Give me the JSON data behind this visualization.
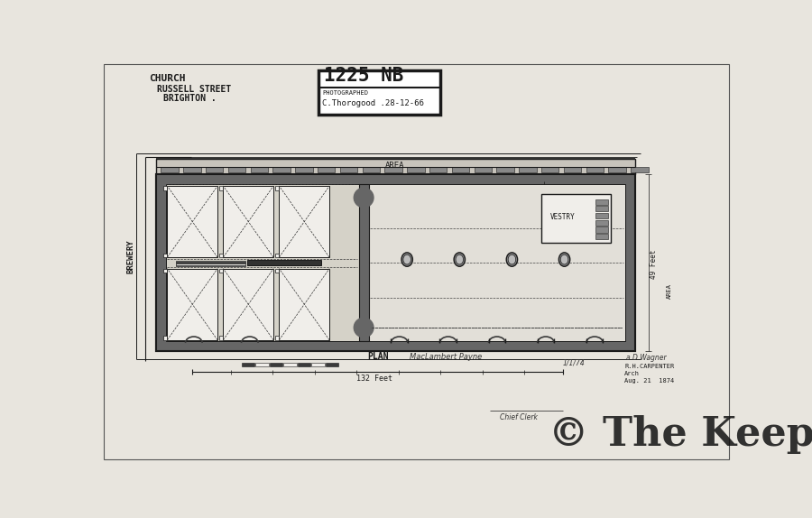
{
  "bg_color": "#d8d4cc",
  "paper_color": "#e8e5de",
  "line_color": "#1a1a1a",
  "dark_fill": "#3a3a3a",
  "wall_fill": "#666666",
  "medium_fill": "#999999",
  "white_fill": "#f0eeea",
  "title_text": "CHURCH",
  "subtitle1": "RUSSELL STREET",
  "subtitle2": "BRIGHTON .",
  "label_area_top": "AREA",
  "label_area_right": "AREA",
  "label_plan": "PLAN",
  "label_brewery": "BREWERY",
  "label_vestry": "VESTRY",
  "label_49ft": "49 Feet",
  "label_132ft": "132 Feet",
  "label_date": "Aug. 21  1874",
  "label_arch": "R.H.CARPENTER",
  "label_clerk": "Chief Clerk",
  "copyright": "© The Keep",
  "stamp_top": "1225 NB",
  "stamp_mid": "PHOTOGRAPHED",
  "stamp_bot": "C.Thorogood .28-12-66"
}
